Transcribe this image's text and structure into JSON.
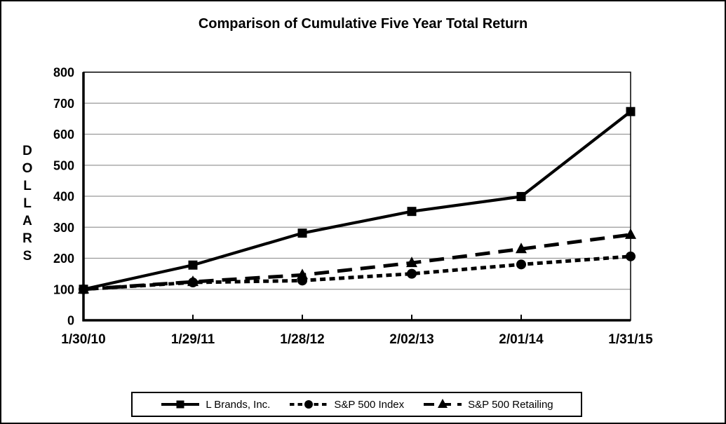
{
  "chart_data": {
    "type": "line",
    "title": "Comparison of Cumulative Five Year Total Return",
    "ylabel": "DOLLARS",
    "xlabel": "",
    "ylim": [
      0,
      800
    ],
    "yticks": [
      0,
      100,
      200,
      300,
      400,
      500,
      600,
      700,
      800
    ],
    "categories": [
      "1/30/10",
      "1/29/11",
      "1/28/12",
      "2/02/13",
      "2/01/14",
      "1/31/15"
    ],
    "grid": true,
    "legend_position": "bottom",
    "colors": {
      "series": "#000000",
      "grid": "#999999",
      "background": "#ffffff",
      "frame_border": "#000000"
    },
    "series": [
      {
        "name": "L Brands, Inc.",
        "marker": "square",
        "line_style": "solid",
        "values": [
          100,
          178,
          281,
          351,
          399,
          673
        ]
      },
      {
        "name": "S&P 500 Index",
        "marker": "circle",
        "line_style": "dash",
        "values": [
          100,
          122,
          128,
          150,
          180,
          206
        ]
      },
      {
        "name": "S&P 500 Retailing",
        "marker": "triangle",
        "line_style": "longdash",
        "values": [
          100,
          124,
          146,
          185,
          230,
          276
        ]
      }
    ]
  }
}
